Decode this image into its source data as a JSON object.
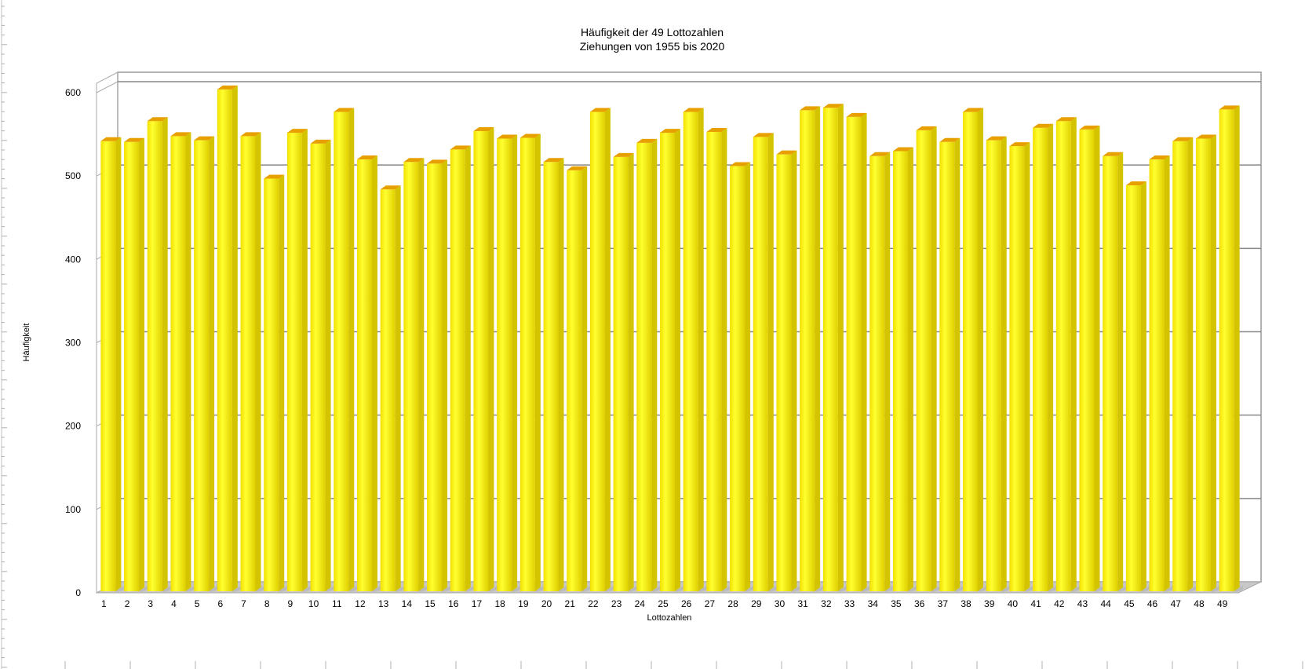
{
  "colors": {
    "bar_front": "#ffff1a",
    "bar_dark": "#d4c400",
    "bar_top": "#e8a000",
    "grid": "#888888",
    "floor": "#c8c8c8",
    "text": "#000000"
  },
  "chart_data": {
    "type": "bar",
    "style": "3d",
    "title": "Häufigkeit der 49 Lottozahlen",
    "subtitle": "Ziehungen von 1955 bis 2020",
    "xlabel": "Lottozahlen",
    "ylabel": "Häufigkeit",
    "ylim": [
      0,
      600
    ],
    "yticks": [
      "0",
      "100",
      "200",
      "300",
      "400",
      "500",
      "600"
    ],
    "grid": true,
    "legend": "none",
    "categories": [
      "1",
      "2",
      "3",
      "4",
      "5",
      "6",
      "7",
      "8",
      "9",
      "10",
      "11",
      "12",
      "13",
      "14",
      "15",
      "16",
      "17",
      "18",
      "19",
      "20",
      "21",
      "22",
      "23",
      "24",
      "25",
      "26",
      "27",
      "28",
      "29",
      "30",
      "31",
      "32",
      "33",
      "34",
      "35",
      "36",
      "37",
      "38",
      "39",
      "40",
      "41",
      "42",
      "43",
      "44",
      "45",
      "46",
      "47",
      "48",
      "49"
    ],
    "values": [
      540,
      539,
      564,
      546,
      541,
      602,
      546,
      495,
      550,
      537,
      575,
      518,
      482,
      515,
      513,
      530,
      552,
      543,
      544,
      515,
      505,
      575,
      521,
      538,
      550,
      575,
      551,
      510,
      545,
      524,
      577,
      580,
      569,
      522,
      528,
      553,
      539,
      575,
      541,
      534,
      556,
      564,
      554,
      522,
      487,
      518,
      540,
      543,
      578
    ]
  }
}
